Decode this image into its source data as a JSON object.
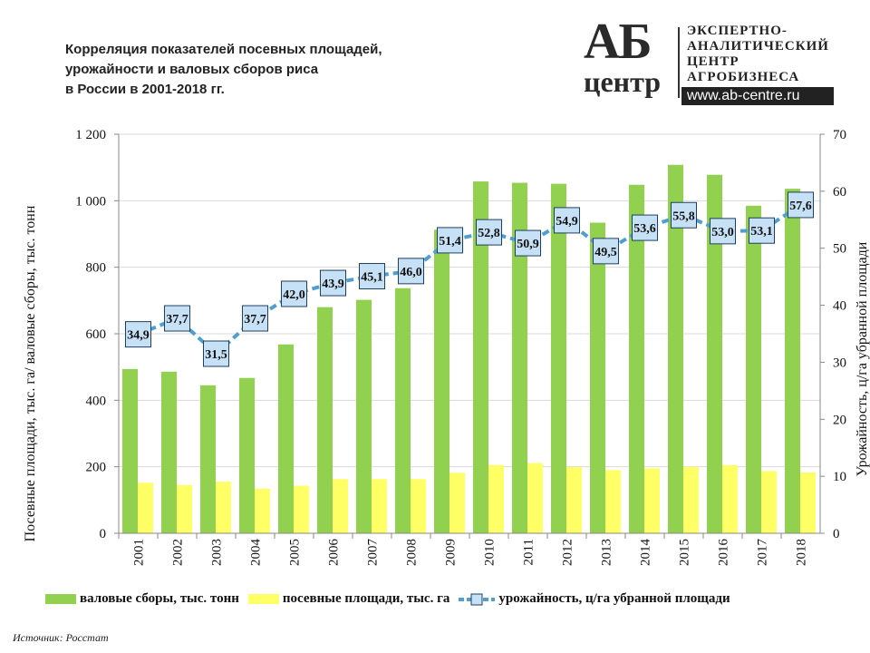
{
  "header": {
    "title_lines": [
      "Корреляция показателей посевных площадей,",
      "урожайности и валовых сборов риса",
      "в России в 2001-2018 гг."
    ]
  },
  "logo": {
    "mark": "АБ",
    "sub": "центр",
    "lines": [
      "ЭКСПЕРТНО-",
      "АНАЛИТИЧЕСКИЙ",
      "ЦЕНТР",
      "АГРОБИЗНЕСА"
    ],
    "url": "www.ab-centre.ru"
  },
  "source": "Источник:  Росстат",
  "chart_data": {
    "type": "bar+line",
    "title": "Корреляция показателей посевных площадей, урожайности и валовых сборов риса в России в 2001-2018 гг.",
    "categories": [
      "2001",
      "2002",
      "2003",
      "2004",
      "2005",
      "2006",
      "2007",
      "2008",
      "2009",
      "2010",
      "2011",
      "2012",
      "2013",
      "2014",
      "2015",
      "2016",
      "2017",
      "2018"
    ],
    "ylabel": "Посевные площади, тыс. га/ валовые сборы, тыс. тонн",
    "y2label": "Урожайность, ц/га убранной площади",
    "ylim": [
      0,
      1200
    ],
    "y2lim": [
      0,
      70
    ],
    "yticks": [
      "0",
      "200",
      "400",
      "600",
      "800",
      "1 000",
      "1 200"
    ],
    "y2ticks": [
      "0",
      "10",
      "20",
      "30",
      "40",
      "50",
      "60",
      "70"
    ],
    "grid": true,
    "legend": "bottom",
    "colors": {
      "gross": "#92d050",
      "area": "#ffff66",
      "yield": "#4e9fcf",
      "label_bg": "#c6e0f5"
    },
    "series": [
      {
        "name": "валовые сборы, тыс. тонн",
        "type": "bar",
        "axis": "left",
        "values": [
          494,
          486,
          445,
          467,
          568,
          680,
          702,
          737,
          913,
          1058,
          1054,
          1051,
          934,
          1048,
          1108,
          1078,
          985,
          1036
        ]
      },
      {
        "name": "посевные площади, тыс. га",
        "type": "bar",
        "axis": "left",
        "values": [
          152,
          145,
          155,
          134,
          143,
          163,
          163,
          163,
          182,
          205,
          211,
          199,
          190,
          195,
          200,
          205,
          187,
          183
        ]
      },
      {
        "name": "урожайность, ц/га убранной площади",
        "type": "line",
        "axis": "right",
        "values": [
          34.9,
          37.7,
          31.5,
          37.7,
          42.0,
          43.9,
          45.1,
          46.0,
          51.4,
          52.8,
          50.9,
          54.9,
          49.5,
          53.6,
          55.8,
          53.0,
          53.1,
          57.6
        ],
        "labels": [
          "34,9",
          "37,7",
          "31,5",
          "37,7",
          "42,0",
          "43,9",
          "45,1",
          "46,0",
          "51,4",
          "52,8",
          "50,9",
          "54,9",
          "49,5",
          "53,6",
          "55,8",
          "53,0",
          "53,1",
          "57,6"
        ]
      }
    ]
  }
}
